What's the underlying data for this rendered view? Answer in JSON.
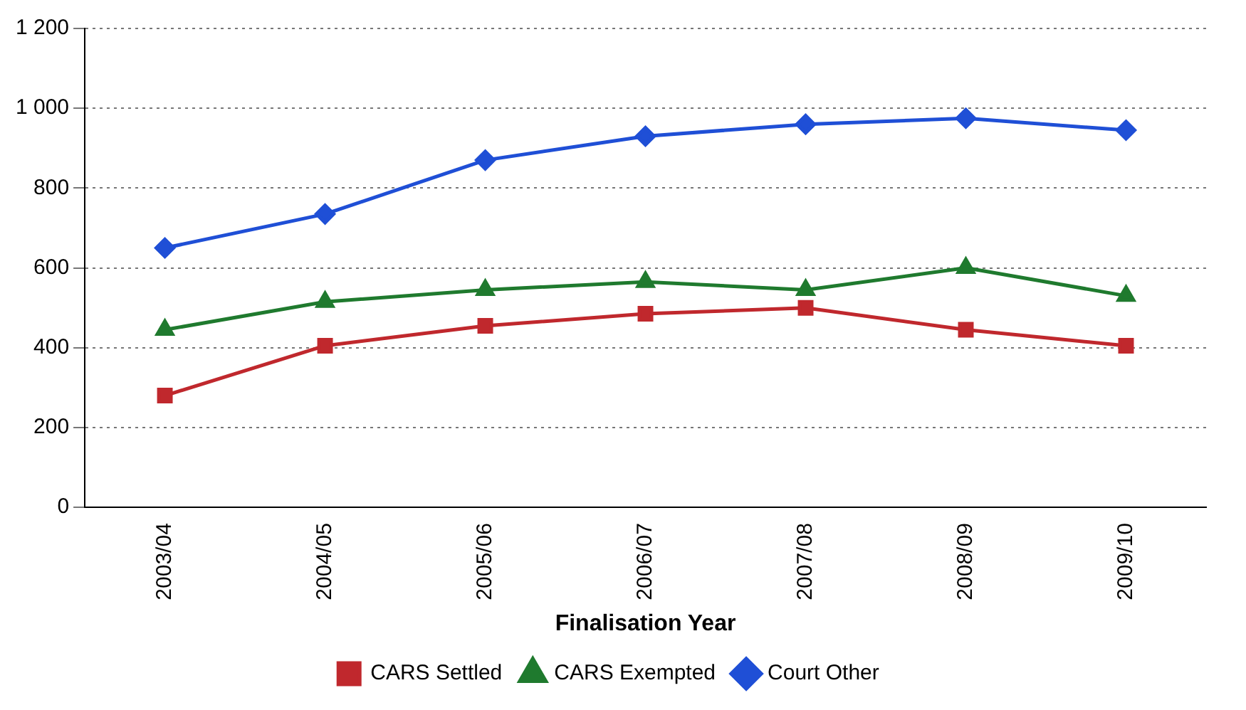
{
  "chart_data": {
    "type": "line",
    "xlabel": "Finalisation Year",
    "categories": [
      "2003/04",
      "2004/05",
      "2005/06",
      "2006/07",
      "2007/08",
      "2008/09",
      "2009/10"
    ],
    "series": [
      {
        "name": "CARS Settled",
        "color": "#c0282d",
        "marker": "square",
        "values": [
          280,
          405,
          455,
          485,
          500,
          445,
          405
        ]
      },
      {
        "name": "CARS Exempted",
        "color": "#1f7a2e",
        "marker": "triangle",
        "values": [
          445,
          515,
          545,
          565,
          545,
          600,
          530
        ]
      },
      {
        "name": "Court Other",
        "color": "#1f4fd6",
        "marker": "diamond",
        "values": [
          650,
          735,
          870,
          930,
          960,
          975,
          945
        ]
      }
    ],
    "ylim": [
      0,
      1200
    ],
    "yticks": [
      0,
      200,
      400,
      600,
      800,
      {
        "value": 1000,
        "label": "1 000"
      },
      {
        "value": 1200,
        "label": "1 200"
      }
    ],
    "grid": "y",
    "legend": "bottom"
  }
}
